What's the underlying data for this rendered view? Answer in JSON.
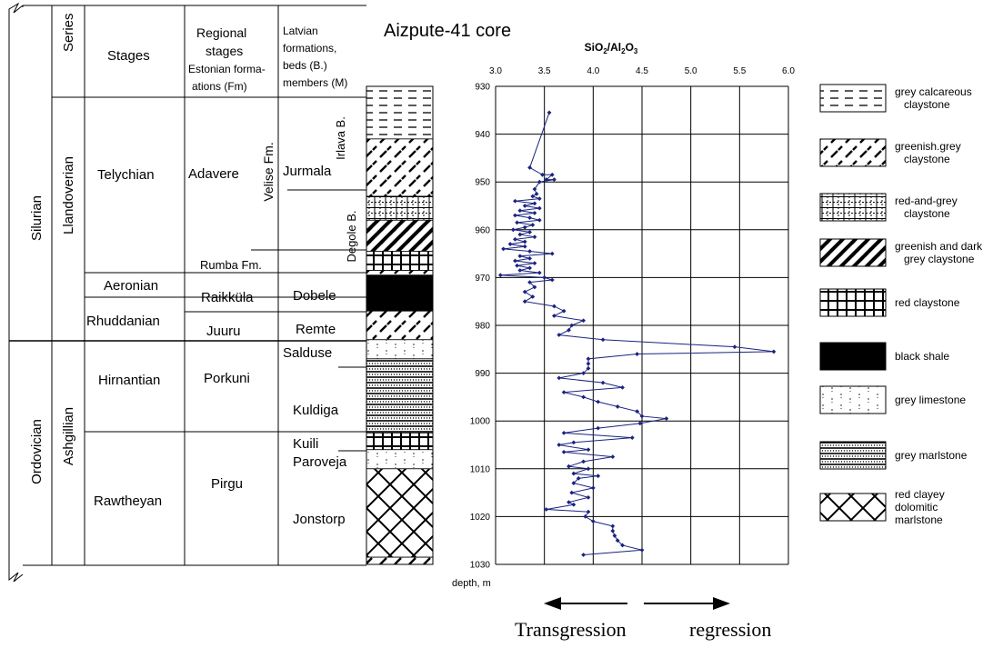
{
  "title": "Aizpute-41 core",
  "headers": {
    "series": "Series",
    "stages": "Stages",
    "regional_1": "Regional",
    "regional_2": "stages",
    "regional_3": "Estonian forma-",
    "regional_4": "ations (Fm)",
    "latvian_1": "Latvian",
    "latvian_2": "formations,",
    "latvian_3": "beds (B.)",
    "latvian_4": "members (M)"
  },
  "systems": [
    "Silurian",
    "Ordovician"
  ],
  "series": [
    "Llandoverian",
    "Ashgillian"
  ],
  "stages": [
    "Telychian",
    "Aeronian",
    "Rhuddanian",
    "Hirnantian",
    "Rawtheyan"
  ],
  "regional_stages": [
    "Adavere",
    "Rumba Fm.",
    "Raikküla",
    "Juuru",
    "Porkuni",
    "Pirgu"
  ],
  "velise": "Velise Fm.",
  "latvian_units": [
    "Irlava B.",
    "Jurmala",
    "Degole B.",
    "Dobele",
    "Remte",
    "Salduse",
    "Kuldiga",
    "Kuili",
    "Paroveja",
    "Jonstorp"
  ],
  "legend": [
    {
      "pattern": "grey-calcareous-claystone",
      "lines": [
        "grey calcareous",
        "claystone"
      ]
    },
    {
      "pattern": "greenish-grey-claystone",
      "lines": [
        "greenish.grey",
        "claystone"
      ]
    },
    {
      "pattern": "red-and-grey-claystone",
      "lines": [
        "red-and-grey",
        "claystone"
      ]
    },
    {
      "pattern": "greenish-dark-grey-claystone",
      "lines": [
        "greenish and dark",
        "grey claystone"
      ]
    },
    {
      "pattern": "red-claystone",
      "lines": [
        "red claystone"
      ]
    },
    {
      "pattern": "black-shale",
      "lines": [
        "black shale"
      ]
    },
    {
      "pattern": "grey-limestone",
      "lines": [
        "grey limestone"
      ]
    },
    {
      "pattern": "grey-marlstone",
      "lines": [
        "grey marlstone"
      ]
    },
    {
      "pattern": "red-clayey-dolomitic-marlstone",
      "lines": [
        "red  clayey",
        "dolomitic",
        "marlstone"
      ]
    }
  ],
  "lithology_column": [
    {
      "pattern": "grey-calcareous-claystone",
      "top": 930,
      "bottom": 941
    },
    {
      "pattern": "greenish-grey-claystone",
      "top": 941,
      "bottom": 953
    },
    {
      "pattern": "red-and-grey-claystone",
      "top": 953,
      "bottom": 958
    },
    {
      "pattern": "greenish-dark-grey-claystone",
      "top": 958,
      "bottom": 964.5
    },
    {
      "pattern": "red-claystone",
      "top": 964.5,
      "bottom": 968.5
    },
    {
      "pattern": "greenish-grey-claystone",
      "top": 968.5,
      "bottom": 969.5
    },
    {
      "pattern": "black-shale",
      "top": 969.5,
      "bottom": 977
    },
    {
      "pattern": "greenish-grey-claystone",
      "top": 977,
      "bottom": 983
    },
    {
      "pattern": "grey-limestone",
      "top": 983,
      "bottom": 987
    },
    {
      "pattern": "grey-marlstone",
      "top": 987,
      "bottom": 1002.5
    },
    {
      "pattern": "red-claystone",
      "top": 1002.5,
      "bottom": 1006
    },
    {
      "pattern": "grey-limestone",
      "top": 1006,
      "bottom": 1010
    },
    {
      "pattern": "red-clayey-dolomitic-marlstone",
      "top": 1010,
      "bottom": 1028.5
    },
    {
      "pattern": "greenish-grey-claystone",
      "top": 1028.5,
      "bottom": 1030
    }
  ],
  "arrows": {
    "left": "Transgression",
    "right": "regression"
  },
  "chart_data": {
    "type": "line",
    "title": "SiO2/Al2O3",
    "title_main": "SiO",
    "title_sub1": "2",
    "title_mid": "/Al",
    "title_sub2": "2",
    "title_tail": "O",
    "title_sub3": "3",
    "xlabel": "",
    "ylabel": "depth, m",
    "xlim": [
      3.0,
      6.0
    ],
    "ylim": [
      930,
      1030
    ],
    "y_reversed": true,
    "x_axis_position": "top",
    "grid": true,
    "color": "#1a237e",
    "x_ticks": [
      "3.0",
      "3.5",
      "4.0",
      "4.5",
      "5.0",
      "5.5",
      "6.0"
    ],
    "y_ticks": [
      "930",
      "940",
      "950",
      "960",
      "970",
      "980",
      "990",
      "1000",
      "1010",
      "1020",
      "1030"
    ],
    "points": [
      {
        "x": 3.55,
        "y": 935.5
      },
      {
        "x": 3.35,
        "y": 947
      },
      {
        "x": 3.48,
        "y": 948.5
      },
      {
        "x": 3.58,
        "y": 948.5
      },
      {
        "x": 3.52,
        "y": 949.5
      },
      {
        "x": 3.6,
        "y": 949.5
      },
      {
        "x": 3.45,
        "y": 950
      },
      {
        "x": 3.4,
        "y": 951.5
      },
      {
        "x": 3.42,
        "y": 952.5
      },
      {
        "x": 3.38,
        "y": 953
      },
      {
        "x": 3.45,
        "y": 953.5
      },
      {
        "x": 3.2,
        "y": 954
      },
      {
        "x": 3.4,
        "y": 954.5
      },
      {
        "x": 3.3,
        "y": 955
      },
      {
        "x": 3.45,
        "y": 955.5
      },
      {
        "x": 3.25,
        "y": 956
      },
      {
        "x": 3.4,
        "y": 956.5
      },
      {
        "x": 3.2,
        "y": 957
      },
      {
        "x": 3.35,
        "y": 957.5
      },
      {
        "x": 3.45,
        "y": 958
      },
      {
        "x": 3.22,
        "y": 958.5
      },
      {
        "x": 3.38,
        "y": 959
      },
      {
        "x": 3.3,
        "y": 959.5
      },
      {
        "x": 3.18,
        "y": 960
      },
      {
        "x": 3.35,
        "y": 960.5
      },
      {
        "x": 3.25,
        "y": 961
      },
      {
        "x": 3.4,
        "y": 961.5
      },
      {
        "x": 3.2,
        "y": 962
      },
      {
        "x": 3.3,
        "y": 962.5
      },
      {
        "x": 3.15,
        "y": 963
      },
      {
        "x": 3.3,
        "y": 963.5
      },
      {
        "x": 3.08,
        "y": 964
      },
      {
        "x": 3.35,
        "y": 964.5
      },
      {
        "x": 3.58,
        "y": 965
      },
      {
        "x": 3.25,
        "y": 965.5
      },
      {
        "x": 3.35,
        "y": 966
      },
      {
        "x": 3.2,
        "y": 966.5
      },
      {
        "x": 3.4,
        "y": 967
      },
      {
        "x": 3.22,
        "y": 967.5
      },
      {
        "x": 3.35,
        "y": 968
      },
      {
        "x": 3.25,
        "y": 968.5
      },
      {
        "x": 3.45,
        "y": 969
      },
      {
        "x": 3.05,
        "y": 969.5
      },
      {
        "x": 3.5,
        "y": 970
      },
      {
        "x": 3.58,
        "y": 970.5
      },
      {
        "x": 3.35,
        "y": 971
      },
      {
        "x": 3.4,
        "y": 972
      },
      {
        "x": 3.3,
        "y": 973
      },
      {
        "x": 3.38,
        "y": 974
      },
      {
        "x": 3.3,
        "y": 975
      },
      {
        "x": 3.6,
        "y": 976
      },
      {
        "x": 3.7,
        "y": 977
      },
      {
        "x": 3.6,
        "y": 978
      },
      {
        "x": 3.9,
        "y": 979
      },
      {
        "x": 3.78,
        "y": 980
      },
      {
        "x": 3.75,
        "y": 981
      },
      {
        "x": 3.65,
        "y": 982
      },
      {
        "x": 4.1,
        "y": 983
      },
      {
        "x": 5.45,
        "y": 984.5
      },
      {
        "x": 5.85,
        "y": 985.5
      },
      {
        "x": 4.45,
        "y": 986
      },
      {
        "x": 3.95,
        "y": 987
      },
      {
        "x": 3.95,
        "y": 988
      },
      {
        "x": 3.95,
        "y": 989
      },
      {
        "x": 3.9,
        "y": 990
      },
      {
        "x": 3.65,
        "y": 991
      },
      {
        "x": 4.1,
        "y": 992
      },
      {
        "x": 4.3,
        "y": 993
      },
      {
        "x": 3.7,
        "y": 994
      },
      {
        "x": 3.9,
        "y": 995
      },
      {
        "x": 4.05,
        "y": 996
      },
      {
        "x": 4.25,
        "y": 997
      },
      {
        "x": 4.45,
        "y": 998
      },
      {
        "x": 4.5,
        "y": 999
      },
      {
        "x": 4.75,
        "y": 999.5
      },
      {
        "x": 4.48,
        "y": 1000.5
      },
      {
        "x": 4.05,
        "y": 1001.5
      },
      {
        "x": 3.7,
        "y": 1002.5
      },
      {
        "x": 4.4,
        "y": 1003.5
      },
      {
        "x": 3.8,
        "y": 1004.5
      },
      {
        "x": 3.65,
        "y": 1005
      },
      {
        "x": 3.95,
        "y": 1006
      },
      {
        "x": 3.7,
        "y": 1006.5
      },
      {
        "x": 4.2,
        "y": 1007.5
      },
      {
        "x": 3.9,
        "y": 1008.5
      },
      {
        "x": 3.75,
        "y": 1009.5
      },
      {
        "x": 3.95,
        "y": 1010
      },
      {
        "x": 3.8,
        "y": 1011
      },
      {
        "x": 4.05,
        "y": 1011.5
      },
      {
        "x": 3.85,
        "y": 1012
      },
      {
        "x": 3.8,
        "y": 1013
      },
      {
        "x": 4.0,
        "y": 1014
      },
      {
        "x": 3.78,
        "y": 1015
      },
      {
        "x": 3.95,
        "y": 1016
      },
      {
        "x": 3.75,
        "y": 1017
      },
      {
        "x": 3.8,
        "y": 1017.5
      },
      {
        "x": 3.52,
        "y": 1018.5
      },
      {
        "x": 3.95,
        "y": 1019
      },
      {
        "x": 3.92,
        "y": 1020
      },
      {
        "x": 4.0,
        "y": 1021
      },
      {
        "x": 4.2,
        "y": 1022
      },
      {
        "x": 4.2,
        "y": 1023
      },
      {
        "x": 4.22,
        "y": 1024
      },
      {
        "x": 4.25,
        "y": 1025
      },
      {
        "x": 4.3,
        "y": 1026
      },
      {
        "x": 4.5,
        "y": 1027
      },
      {
        "x": 3.9,
        "y": 1028
      }
    ]
  }
}
